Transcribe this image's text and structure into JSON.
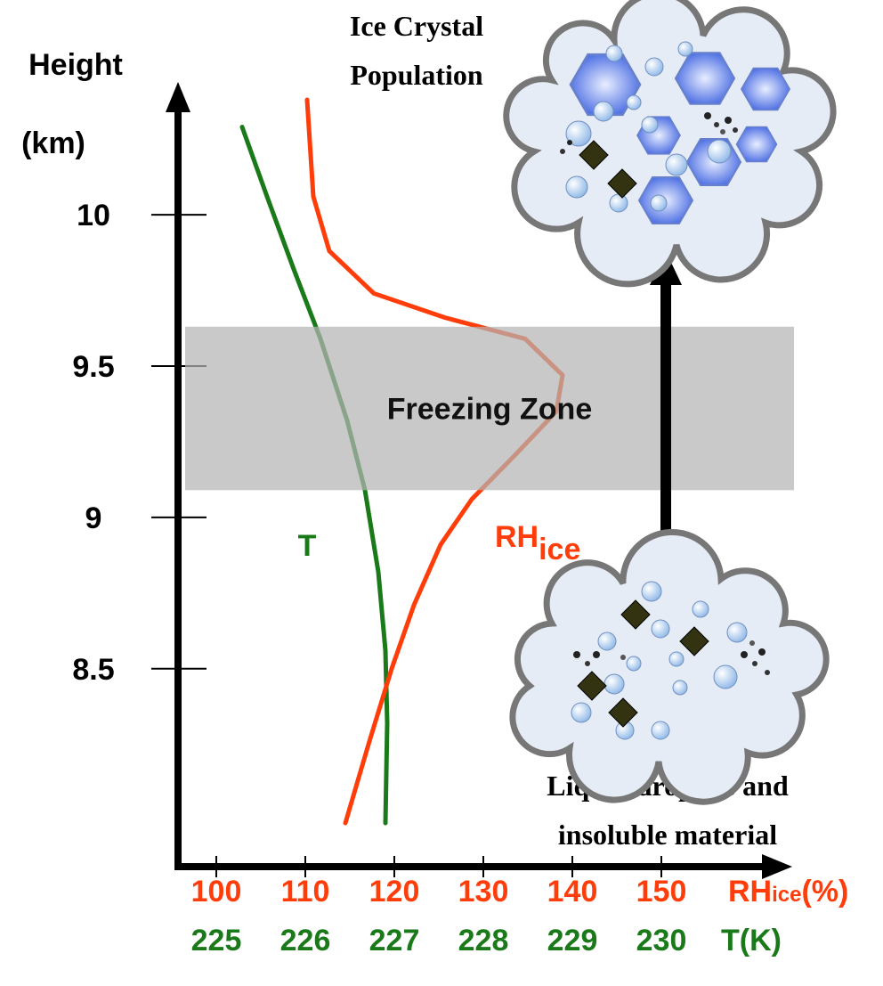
{
  "chart_data": {
    "type": "line",
    "y_label": "Height",
    "y_unit": "(km)",
    "ylim": [
      7.84,
      10.43
    ],
    "yticks": [
      8.5,
      9,
      9.5,
      10
    ],
    "x_label": "RH",
    "x_label_sub": "ice",
    "x_label_unit": "(%)",
    "xlim": [
      95.7,
      164.2
    ],
    "xticks": [
      100,
      110,
      120,
      130,
      140,
      150
    ],
    "x2_label": "T(K)",
    "x2lim": [
      224.57,
      231.42
    ],
    "x2ticks": [
      225,
      226,
      227,
      228,
      229,
      230
    ],
    "series": [
      {
        "name": "T",
        "color": "#1a7a1a",
        "axis": "x2",
        "x": [
          225.29,
          225.57,
          225.87,
          226.17,
          226.47,
          226.67,
          226.82,
          226.9,
          226.92,
          226.9
        ],
        "values": [
          10.29,
          10.06,
          9.82,
          9.59,
          9.32,
          9.09,
          8.82,
          8.56,
          8.32,
          7.99
        ]
      },
      {
        "name": "RH",
        "name_sub": "ice",
        "color": "#ff3d0a",
        "axis": "x",
        "x": [
          110.2,
          110.9,
          112.7,
          117.7,
          125.7,
          134.7,
          138.9,
          138.2,
          133.7,
          128.7,
          125.2,
          122.2,
          119.7,
          117.2,
          114.5
        ],
        "values": [
          10.38,
          10.06,
          9.88,
          9.74,
          9.66,
          9.59,
          9.47,
          9.35,
          9.21,
          9.06,
          8.91,
          8.71,
          8.5,
          8.26,
          7.99
        ]
      }
    ],
    "band": {
      "label": "Freezing Zone",
      "range": [
        9.09,
        9.63
      ]
    },
    "annotations": [
      "Ice Crystal",
      "Population",
      "Liquid droplets and",
      "insoluble material"
    ]
  }
}
